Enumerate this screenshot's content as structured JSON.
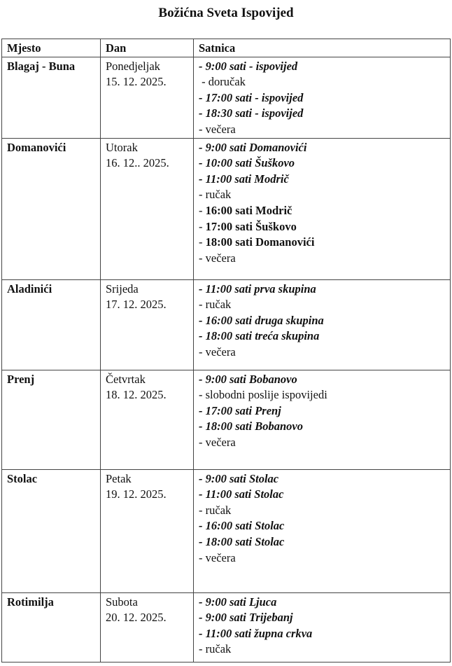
{
  "title": "Božićna Sveta Ispovijed",
  "headers": [
    "Mjesto",
    "Dan",
    "Satnica"
  ],
  "rows": [
    {
      "place": "Blagaj - Buna",
      "day": "Ponedjeljak",
      "date": "15. 12. 2025.",
      "items": [
        {
          "prefix": "- ",
          "text": "9:00 sati - ispovijed",
          "style": "bi"
        },
        {
          "prefix": " - ",
          "text": "doručak",
          "style": "n"
        },
        {
          "prefix": "- ",
          "text": "17:00 sati - ispovijed",
          "style": "bi"
        },
        {
          "prefix": "- ",
          "text": "18:30 sati - ispovijed",
          "style": "bi"
        },
        {
          "prefix": "- ",
          "text": "večera",
          "style": "n"
        }
      ]
    },
    {
      "place": "Domanovići",
      "day": "Utorak",
      "date": "16. 12.. 2025.",
      "items": [
        {
          "prefix": "- ",
          "text": "9:00 sati Domanovići",
          "style": "bi"
        },
        {
          "prefix": "- ",
          "text": "10:00 sati Šuškovo",
          "style": "bi"
        },
        {
          "prefix": "- ",
          "text": "11:00 sati Modrič",
          "style": "bi"
        },
        {
          "prefix": "- ",
          "text": "ručak",
          "style": "n"
        },
        {
          "prefix": "- ",
          "text": "16:00 sati Modrič",
          "style": "b"
        },
        {
          "prefix": "- ",
          "text": "17:00 sati Šuškovo",
          "style": "b"
        },
        {
          "prefix": "- ",
          "text": "18:00 sati Domanovići",
          "style": "b"
        },
        {
          "prefix": "- ",
          "text": "večera",
          "style": "n"
        }
      ]
    },
    {
      "place": "Aladinići",
      "day": "Srijeda",
      "date": "17. 12. 2025.",
      "items": [
        {
          "prefix": "- ",
          "text": "11:00 sati prva skupina",
          "style": "bi"
        },
        {
          "prefix": "- ",
          "text": "ručak",
          "style": "n"
        },
        {
          "prefix": "- ",
          "text": "16:00 sati druga skupina",
          "style": "bi"
        },
        {
          "prefix": "- ",
          "text": "18:00 sati treća skupina",
          "style": "bi"
        },
        {
          "prefix": "- ",
          "text": "večera",
          "style": "n"
        }
      ]
    },
    {
      "place": "Prenj",
      "day": "Četvrtak",
      "date": "18. 12. 2025.",
      "items": [
        {
          "prefix": "- ",
          "text": "9:00 sati Bobanovo",
          "style": "bi"
        },
        {
          "prefix": "- ",
          "text": "slobodni poslije ispovijedi",
          "style": "n"
        },
        {
          "prefix": "- ",
          "text": "17:00 sati Prenj",
          "style": "bi"
        },
        {
          "prefix": "- ",
          "text": "18:00 sati Bobanovo",
          "style": "bi"
        },
        {
          "prefix": "- ",
          "text": "večera",
          "style": "n"
        }
      ]
    },
    {
      "place": "Stolac",
      "day": "Petak",
      "date": "19. 12. 2025.",
      "items": [
        {
          "prefix": "- ",
          "text": "9:00 sati Stolac",
          "style": "bi"
        },
        {
          "prefix": "- ",
          "text": "11:00 sati Stolac",
          "style": "bi"
        },
        {
          "prefix": "- ",
          "text": "ručak",
          "style": "n"
        },
        {
          "prefix": "- ",
          "text": "16:00 sati Stolac",
          "style": "bi"
        },
        {
          "prefix": "- ",
          "text": "18:00 sati Stolac",
          "style": "bi"
        },
        {
          "prefix": "- ",
          "text": "večera",
          "style": "n"
        }
      ]
    },
    {
      "place": "Rotimilja",
      "day": "Subota",
      "date": "20. 12. 2025.",
      "items": [
        {
          "prefix": "- ",
          "text": "9:00 sati Ljuca",
          "style": "bi"
        },
        {
          "prefix": "- ",
          "text": "9:00 sati Trijebanj",
          "style": "bi"
        },
        {
          "prefix": "- ",
          "text": "11:00 sati župna crkva",
          "style": "bi"
        },
        {
          "prefix": "- ",
          "text": "ručak",
          "style": "n"
        }
      ]
    }
  ]
}
